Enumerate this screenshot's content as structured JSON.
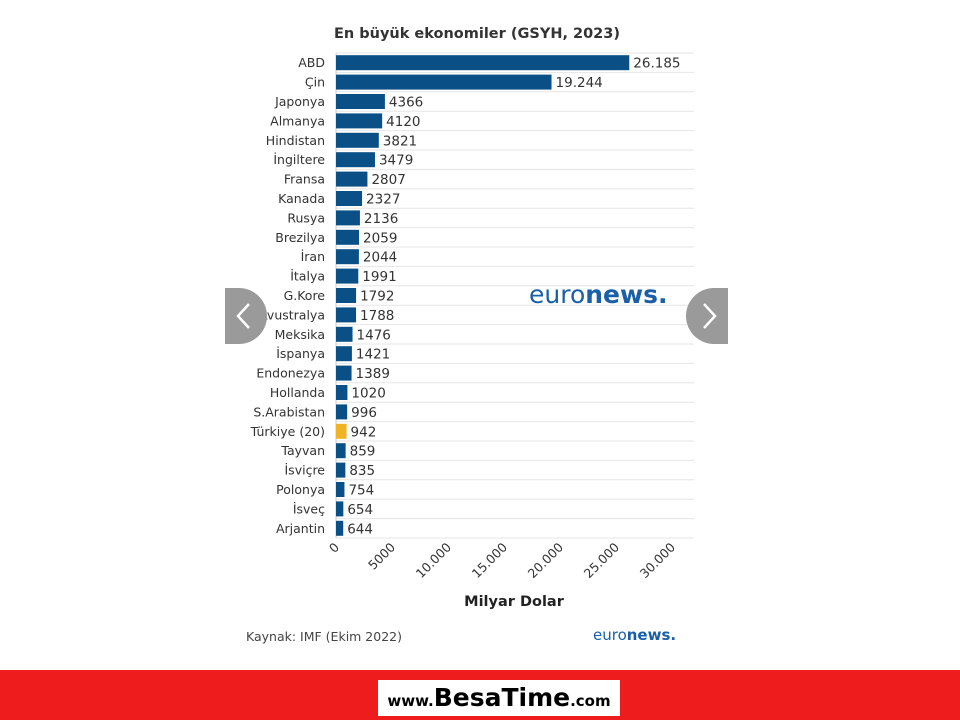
{
  "chart_data": {
    "type": "bar",
    "orientation": "horizontal",
    "title": "En büyük ekonomiler (GSYH, 2023)",
    "xlabel": "Milyar Dolar",
    "ylabel": "",
    "categories": [
      "ABD",
      "Çin",
      "Japonya",
      "Almanya",
      "Hindistan",
      "İngiltere",
      "Fransa",
      "Kanada",
      "Rusya",
      "Brezilya",
      "İran",
      "İtalya",
      "G.Kore",
      "Avustralya",
      "Meksika",
      "İspanya",
      "Endonezya",
      "Hollanda",
      "S.Arabistan",
      "Türkiye (20)",
      "Tayvan",
      "İsviçre",
      "Polonya",
      "İsveç",
      "Arjantin"
    ],
    "values": [
      26185,
      19244,
      4366,
      4120,
      3821,
      3479,
      2807,
      2327,
      2136,
      2059,
      2044,
      1991,
      1792,
      1788,
      1476,
      1421,
      1389,
      1020,
      996,
      942,
      859,
      835,
      754,
      654,
      644
    ],
    "value_labels": [
      "26.185",
      "19.244",
      "4366",
      "4120",
      "3821",
      "3479",
      "2807",
      "2327",
      "2136",
      "2059",
      "2044",
      "1991",
      "1792",
      "1788",
      "1476",
      "1421",
      "1389",
      "1020",
      "996",
      "942",
      "859",
      "835",
      "754",
      "654",
      "644"
    ],
    "xlim": [
      0,
      30000
    ],
    "xticks": [
      0,
      5000,
      10000,
      15000,
      20000,
      25000,
      30000
    ],
    "xtick_labels": [
      "0",
      "5000",
      "10.000",
      "15.000",
      "20.000",
      "25.000",
      "30.000"
    ],
    "grid": true,
    "colors": {
      "bar": "#0a4f86",
      "highlight": "#f0b323"
    },
    "highlight_category": "Türkiye (20)"
  },
  "source": "Kaynak: IMF (Ekim 2022)",
  "logo": {
    "part1": "euro",
    "part2": "news."
  },
  "nav": {
    "prev_icon": "chevron-left-icon",
    "next_icon": "chevron-right-icon"
  },
  "footer": {
    "prefix": "www.",
    "brand1": "Besa",
    "brand2": "Time",
    "suffix": ".com",
    "band_color": "#ee1c1c"
  }
}
